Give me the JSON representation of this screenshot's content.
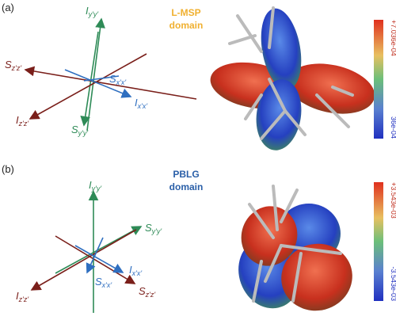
{
  "panels": [
    {
      "label": "(a)",
      "domain_name": "L-MSP",
      "domain_word": "domain",
      "axes": [
        {
          "symbol": "I",
          "subscript": "y'y'"
        },
        {
          "symbol": "S",
          "subscript": "z'z'"
        },
        {
          "symbol": "S",
          "subscript": "x'x'"
        },
        {
          "symbol": "I",
          "subscript": "x'x'"
        },
        {
          "symbol": "I",
          "subscript": "z'z'"
        },
        {
          "symbol": "S",
          "subscript": "y'y'"
        }
      ],
      "colorbar": {
        "max": "+7.036e-04",
        "min": "36e-04"
      }
    },
    {
      "label": "(b)",
      "domain_name": "PBLG",
      "domain_word": "domain",
      "axes": [
        {
          "symbol": "I",
          "subscript": "y'y'"
        },
        {
          "symbol": "S",
          "subscript": "y'y'"
        },
        {
          "symbol": "I",
          "subscript": "x'x'"
        },
        {
          "symbol": "S",
          "subscript": "x'x'"
        },
        {
          "symbol": "I",
          "subscript": "z'z'"
        },
        {
          "symbol": "S",
          "subscript": "z'z'"
        }
      ],
      "colorbar": {
        "max": "+3.543e-03",
        "min": "-3.543e-03"
      }
    }
  ]
}
